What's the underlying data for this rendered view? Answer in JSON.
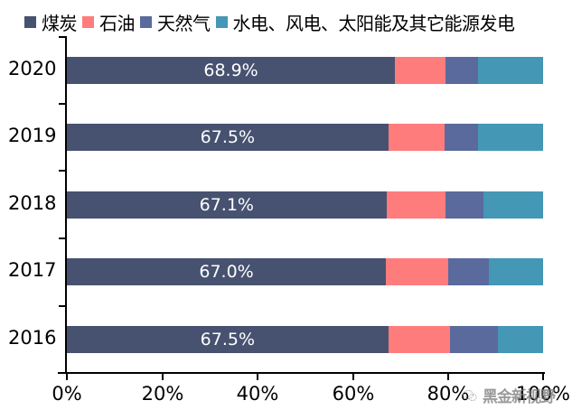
{
  "chart_data": {
    "type": "bar",
    "orientation": "horizontal",
    "stacked": "percent",
    "title": "",
    "xlabel": "",
    "ylabel": "",
    "xlim": [
      0,
      100
    ],
    "x_ticks": [
      "0%",
      "20%",
      "40%",
      "60%",
      "80%",
      "100%"
    ],
    "categories": [
      "2020",
      "2019",
      "2018",
      "2017",
      "2016"
    ],
    "legend_position": "top",
    "grid": false,
    "series": [
      {
        "name": "煤炭",
        "color": "#475271",
        "values": [
          68.9,
          67.5,
          67.1,
          67.0,
          67.5
        ]
      },
      {
        "name": "石油",
        "color": "#FF7C7C",
        "values": [
          10.6,
          11.8,
          12.4,
          13.1,
          13.0
        ]
      },
      {
        "name": "天然气",
        "color": "#5A6A9C",
        "values": [
          6.8,
          7.0,
          8.0,
          8.5,
          10.0
        ]
      },
      {
        "name": "水电、风电、太阳能及其它能源发电",
        "color": "#4497B5",
        "values": [
          13.7,
          13.7,
          12.5,
          11.4,
          9.5
        ]
      }
    ],
    "data_labels": [
      "68.9%",
      "67.5%",
      "67.1%",
      "67.0%",
      "67.5%"
    ]
  },
  "watermark": {
    "text": "黑金新视野",
    "icon": "wechat-icon"
  }
}
